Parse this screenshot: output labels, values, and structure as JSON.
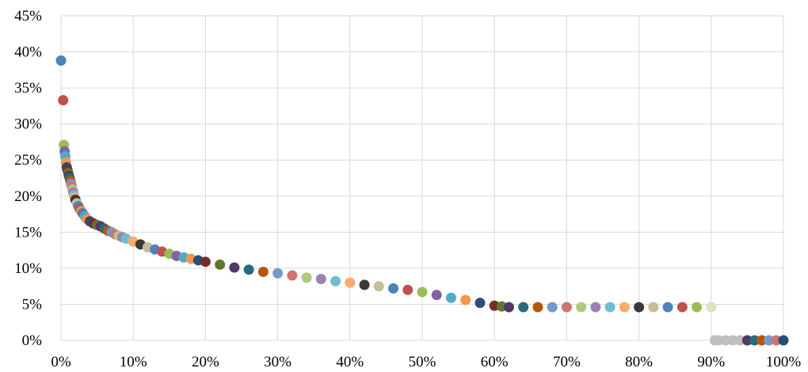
{
  "chart_data": {
    "type": "scatter",
    "title": "",
    "xlabel": "",
    "ylabel": "",
    "xlim": [
      0,
      1
    ],
    "ylim": [
      0,
      0.45
    ],
    "grid": true,
    "legend": "none",
    "x_ticks": [
      "0%",
      "10%",
      "20%",
      "30%",
      "40%",
      "50%",
      "60%",
      "70%",
      "80%",
      "90%",
      "100%"
    ],
    "y_ticks": [
      "0%",
      "5%",
      "10%",
      "15%",
      "20%",
      "25%",
      "30%",
      "35%",
      "40%",
      "45%"
    ],
    "x_tick_values": [
      0,
      0.1,
      0.2,
      0.3,
      0.4,
      0.5,
      0.6,
      0.7,
      0.8,
      0.9,
      1.0
    ],
    "y_tick_values": [
      0,
      0.05,
      0.1,
      0.15,
      0.2,
      0.25,
      0.3,
      0.35,
      0.4,
      0.45
    ],
    "palette": [
      "#4f81bd",
      "#c0504d",
      "#9bbb59",
      "#8064a2",
      "#4bacc6",
      "#f79646",
      "#2c4d75",
      "#772c2a",
      "#5f7530",
      "#4d3b62",
      "#276a7c",
      "#b65708",
      "#729aca",
      "#cd7371",
      "#afc97a",
      "#9983b5",
      "#6fbdd1",
      "#f9ab6b",
      "#3a3a3a",
      "#c4bd97"
    ],
    "series": [
      {
        "x": [
          0.0,
          0.003,
          0.004,
          0.005,
          0.006,
          0.007,
          0.008,
          0.009,
          0.01,
          0.011,
          0.012,
          0.013,
          0.014,
          0.015,
          0.016,
          0.017,
          0.018,
          0.019,
          0.02,
          0.022,
          0.024,
          0.026,
          0.028,
          0.03,
          0.033,
          0.036,
          0.04,
          0.045,
          0.05,
          0.055,
          0.06,
          0.065,
          0.07,
          0.075,
          0.08,
          0.085,
          0.09,
          0.1,
          0.11,
          0.12,
          0.13,
          0.14,
          0.15,
          0.16,
          0.17,
          0.18,
          0.19,
          0.2,
          0.22,
          0.24,
          0.26,
          0.28,
          0.3,
          0.32,
          0.34,
          0.36,
          0.38,
          0.4,
          0.42,
          0.44,
          0.46,
          0.48,
          0.5,
          0.52,
          0.54,
          0.56,
          0.58,
          0.6,
          0.61,
          0.62,
          0.64,
          0.66,
          0.68,
          0.7,
          0.72,
          0.74,
          0.76,
          0.78,
          0.8,
          0.82,
          0.84,
          0.86,
          0.88,
          0.9,
          0.905,
          0.91,
          0.92,
          0.93,
          0.94,
          0.95,
          0.96,
          0.97,
          0.98,
          0.99,
          1.0
        ],
        "y": [
          0.388,
          0.333,
          0.271,
          0.262,
          0.255,
          0.247,
          0.24,
          0.236,
          0.232,
          0.228,
          0.225,
          0.221,
          0.217,
          0.213,
          0.209,
          0.205,
          0.201,
          0.198,
          0.195,
          0.19,
          0.186,
          0.182,
          0.179,
          0.176,
          0.172,
          0.168,
          0.165,
          0.162,
          0.16,
          0.158,
          0.155,
          0.152,
          0.15,
          0.147,
          0.145,
          0.143,
          0.141,
          0.137,
          0.133,
          0.129,
          0.126,
          0.123,
          0.12,
          0.117,
          0.115,
          0.113,
          0.111,
          0.109,
          0.105,
          0.101,
          0.098,
          0.095,
          0.093,
          0.09,
          0.087,
          0.085,
          0.082,
          0.08,
          0.077,
          0.075,
          0.072,
          0.07,
          0.067,
          0.063,
          0.059,
          0.056,
          0.052,
          0.048,
          0.047,
          0.046,
          0.046,
          0.046,
          0.046,
          0.046,
          0.046,
          0.046,
          0.046,
          0.046,
          0.046,
          0.046,
          0.046,
          0.046,
          0.046,
          0.046,
          0.0,
          0.0,
          0.0,
          0.0,
          0.0,
          0.0,
          0.0,
          0.0,
          0.0,
          0.0,
          0.0
        ]
      }
    ]
  }
}
